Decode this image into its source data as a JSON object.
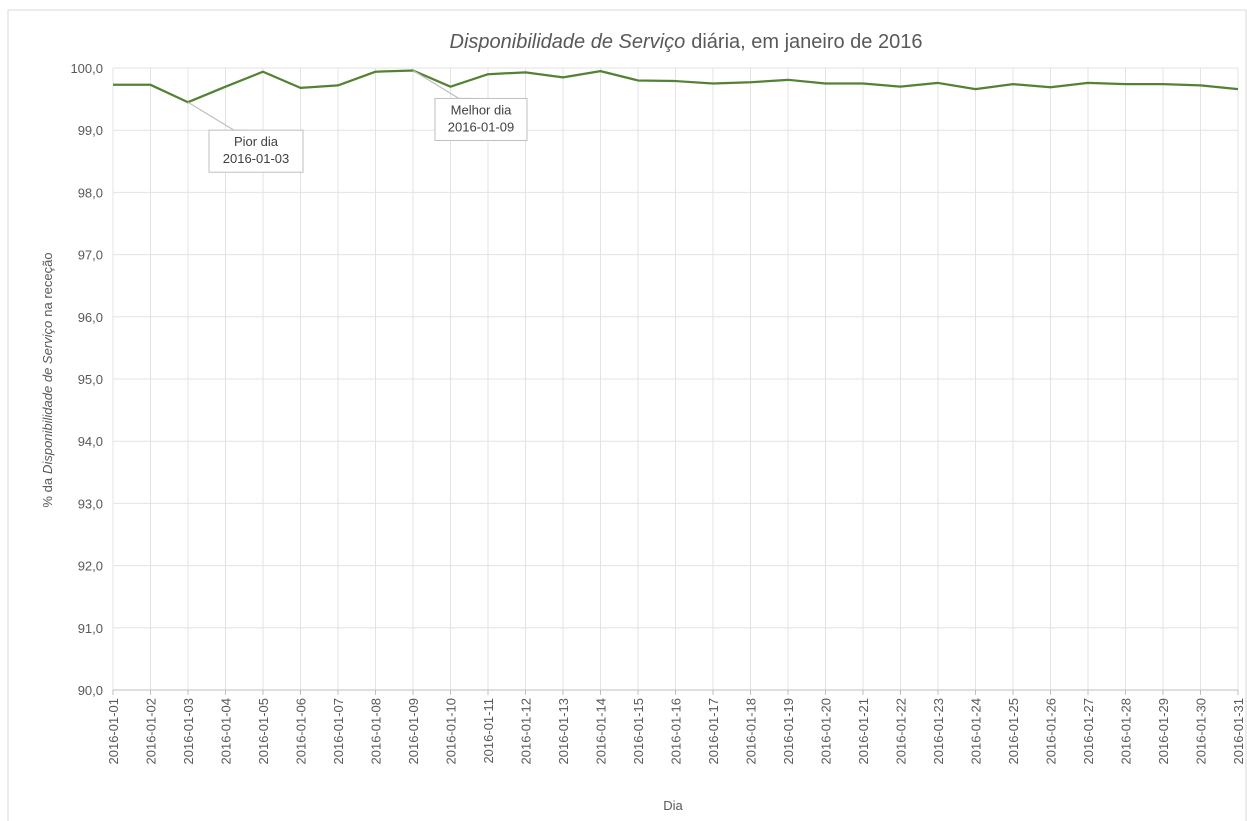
{
  "chart_data": {
    "type": "line",
    "title": [
      "Disponibilidade de Serviço",
      "diária, em janeiro de 2016"
    ],
    "y_label": [
      "% da",
      "Disponibilidade de Serviço",
      "na receção"
    ],
    "x_label": "Dia",
    "categories": [
      "2016-01-01",
      "2016-01-02",
      "2016-01-03",
      "2016-01-04",
      "2016-01-05",
      "2016-01-06",
      "2016-01-07",
      "2016-01-08",
      "2016-01-09",
      "2016-01-10",
      "2016-01-11",
      "2016-01-12",
      "2016-01-13",
      "2016-01-14",
      "2016-01-15",
      "2016-01-16",
      "2016-01-17",
      "2016-01-18",
      "2016-01-19",
      "2016-01-20",
      "2016-01-21",
      "2016-01-22",
      "2016-01-23",
      "2016-01-24",
      "2016-01-25",
      "2016-01-26",
      "2016-01-27",
      "2016-01-28",
      "2016-01-29",
      "2016-01-30",
      "2016-01-31"
    ],
    "values": [
      99.73,
      99.73,
      99.45,
      99.7,
      99.94,
      99.68,
      99.72,
      99.94,
      99.96,
      99.7,
      99.9,
      99.93,
      99.85,
      99.95,
      99.8,
      99.79,
      99.75,
      99.77,
      99.81,
      99.75,
      99.75,
      99.7,
      99.76,
      99.66,
      99.74,
      99.69,
      99.76,
      99.74,
      99.74,
      99.72,
      99.66
    ],
    "color": "#548235",
    "ylim": [
      90,
      100
    ],
    "yticks": [
      {
        "value": 90,
        "label": "90,0"
      },
      {
        "value": 91,
        "label": "91,0"
      },
      {
        "value": 92,
        "label": "92,0"
      },
      {
        "value": 93,
        "label": "93,0"
      },
      {
        "value": 94,
        "label": "94,0"
      },
      {
        "value": 95,
        "label": "95,0"
      },
      {
        "value": 96,
        "label": "96,0"
      },
      {
        "value": 97,
        "label": "97,0"
      },
      {
        "value": 98,
        "label": "98,0"
      },
      {
        "value": 99,
        "label": "99,0"
      },
      {
        "value": 100,
        "label": "100,0"
      }
    ],
    "grid": true,
    "annotations": [
      {
        "lines": [
          "Pior dia",
          "2016-01-03"
        ]
      },
      {
        "lines": [
          "Melhor dia",
          "2016-01-09"
        ]
      }
    ]
  }
}
